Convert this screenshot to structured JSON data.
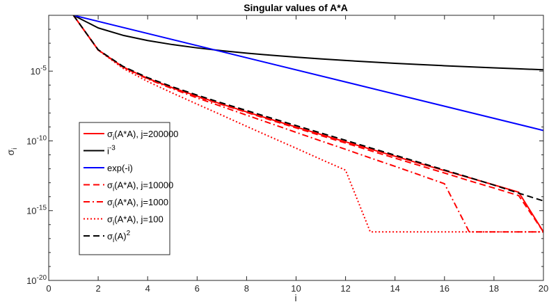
{
  "chart_data": {
    "type": "line",
    "title": "Singular values of A*A",
    "xlabel": "i",
    "ylabel": "σ",
    "ylabel_sub": "i",
    "xlim": [
      0,
      20
    ],
    "ylim": [
      1e-20,
      0.1
    ],
    "yscale": "log",
    "xticks": [
      0,
      2,
      4,
      6,
      8,
      10,
      12,
      14,
      16,
      18,
      20
    ],
    "yticks": [
      -20,
      -15,
      -10,
      -5
    ],
    "grid": false,
    "legend_position": "lower-left",
    "series": [
      {
        "name": "σi(A*A), j=200000",
        "label_parts": [
          "σ",
          "i",
          "(A*A), j=200000",
          ""
        ],
        "color": "#ff0000",
        "style": "solid",
        "width": 2,
        "x": [
          1,
          2,
          3,
          4,
          5,
          6,
          7,
          8,
          9,
          10,
          11,
          12,
          13,
          14,
          15,
          16,
          17,
          18,
          19,
          20
        ],
        "y": [
          0.1,
          0.00033,
          2e-05,
          3e-06,
          6.5e-07,
          1.6e-07,
          4.3e-08,
          1.2e-08,
          3.4e-09,
          9.8e-10,
          2.9e-10,
          8.6e-11,
          2.6e-11,
          7.9e-12,
          2.4e-12,
          7.4e-13,
          2.3e-13,
          7e-14,
          2.1e-14,
          3e-17
        ]
      },
      {
        "name": "i-3",
        "label_parts": [
          "i",
          "",
          "",
          "-3"
        ],
        "color": "#000000",
        "style": "solid",
        "width": 2,
        "x": [
          1,
          2,
          3,
          4,
          5,
          6,
          7,
          8,
          9,
          10,
          11,
          12,
          13,
          14,
          15,
          16,
          17,
          18,
          19,
          20
        ],
        "y": [
          0.1,
          0.0125,
          0.0037,
          0.00156,
          0.0008,
          0.000463,
          0.000292,
          0.000195,
          0.000137,
          0.0001,
          7.51e-05,
          5.79e-05,
          4.55e-05,
          3.64e-05,
          2.96e-05,
          2.44e-05,
          2.04e-05,
          1.71e-05,
          1.46e-05,
          1.25e-05
        ]
      },
      {
        "name": "exp(-i)",
        "label_parts": [
          "exp(-i)",
          "",
          "",
          ""
        ],
        "color": "#0000ff",
        "style": "solid",
        "width": 2,
        "x": [
          1,
          20
        ],
        "y": [
          0.1,
          5.6e-10
        ]
      },
      {
        "name": "σi(A*A), j=10000",
        "label_parts": [
          "σ",
          "i",
          "(A*A), j=10000",
          ""
        ],
        "color": "#ff0000",
        "style": "dashed",
        "width": 2,
        "x": [
          1,
          2,
          3,
          4,
          5,
          6,
          7,
          8,
          9,
          10,
          11,
          12,
          13,
          14,
          15,
          16,
          17,
          18,
          19,
          20
        ],
        "y": [
          0.1,
          0.00033,
          2e-05,
          3e-06,
          6.3e-07,
          1.5e-07,
          4e-08,
          1.1e-08,
          3e-09,
          8.5e-10,
          2.4e-10,
          7e-11,
          2e-11,
          5.8e-12,
          1.7e-12,
          5e-13,
          1.4e-13,
          4.2e-14,
          1.2e-14,
          3e-17
        ]
      },
      {
        "name": "σi(A*A), j=1000",
        "label_parts": [
          "σ",
          "i",
          "(A*A), j=1000",
          ""
        ],
        "color": "#ff0000",
        "style": "dashdot",
        "width": 2,
        "x": [
          1,
          2,
          3,
          4,
          5,
          6,
          7,
          8,
          9,
          10,
          11,
          12,
          13,
          14,
          15,
          16,
          17,
          18,
          19,
          20
        ],
        "y": [
          0.1,
          0.00033,
          1.9e-05,
          2.7e-06,
          5.5e-07,
          1.2e-07,
          2.9e-08,
          7e-09,
          1.7e-09,
          4.1e-10,
          1e-10,
          2.5e-11,
          6e-12,
          1.5e-12,
          3.6e-13,
          8.5e-14,
          3e-17,
          3e-17,
          3e-17,
          3e-17
        ]
      },
      {
        "name": "σi(A*A), j=100",
        "label_parts": [
          "σ",
          "i",
          "(A*A), j=100",
          ""
        ],
        "color": "#ff0000",
        "style": "dotted",
        "width": 2,
        "x": [
          1,
          2,
          3,
          4,
          5,
          6,
          7,
          8,
          9,
          10,
          11,
          12,
          13,
          14,
          15,
          16,
          17,
          18,
          19,
          20
        ],
        "y": [
          0.1,
          0.00032,
          1.6e-05,
          1.8e-06,
          2.7e-07,
          4.3e-08,
          7e-09,
          1.1e-09,
          1.8e-10,
          3e-11,
          4.8e-12,
          8e-13,
          3e-17,
          3e-17,
          3e-17,
          3e-17,
          3e-17,
          3e-17,
          3e-17,
          3e-17
        ]
      },
      {
        "name": "σi(A)2",
        "label_parts": [
          "σ",
          "i",
          "(A)",
          "2"
        ],
        "color": "#000000",
        "style": "dashed",
        "width": 2,
        "x": [
          1,
          2,
          3,
          4,
          5,
          6,
          7,
          8,
          9,
          10,
          11,
          12,
          13,
          14,
          15,
          16,
          17,
          18,
          19,
          20
        ],
        "y": [
          0.1,
          0.00034,
          2.2e-05,
          3.4e-06,
          7.5e-07,
          1.9e-07,
          5.2e-08,
          1.5e-08,
          4.3e-09,
          1.25e-09,
          3.7e-10,
          1.1e-10,
          3.2e-11,
          9.5e-12,
          2.8e-12,
          8.2e-13,
          2.4e-13,
          6.8e-14,
          1.8e-14,
          5e-15
        ]
      }
    ]
  }
}
